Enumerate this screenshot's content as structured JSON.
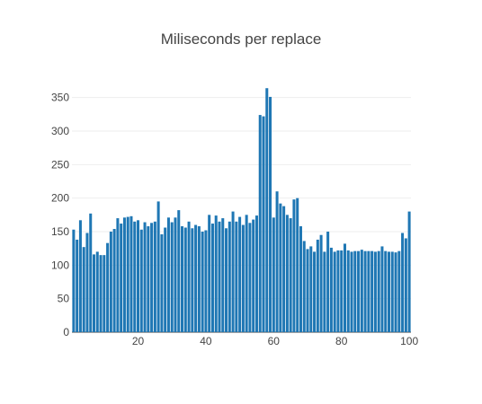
{
  "chart_data": {
    "type": "bar",
    "title": "Miliseconds per replace",
    "xlabel": "",
    "ylabel": "",
    "xlim": [
      0.5,
      100.5
    ],
    "ylim": [
      0,
      375
    ],
    "x_ticks": [
      20,
      40,
      60,
      80,
      100
    ],
    "y_ticks": [
      0,
      50,
      100,
      150,
      200,
      250,
      300,
      350
    ],
    "grid": "horizontal",
    "bar_color": "#1f77b4",
    "x": [
      1,
      2,
      3,
      4,
      5,
      6,
      7,
      8,
      9,
      10,
      11,
      12,
      13,
      14,
      15,
      16,
      17,
      18,
      19,
      20,
      21,
      22,
      23,
      24,
      25,
      26,
      27,
      28,
      29,
      30,
      31,
      32,
      33,
      34,
      35,
      36,
      37,
      38,
      39,
      40,
      41,
      42,
      43,
      44,
      45,
      46,
      47,
      48,
      49,
      50,
      51,
      52,
      53,
      54,
      55,
      56,
      57,
      58,
      59,
      60,
      61,
      62,
      63,
      64,
      65,
      66,
      67,
      68,
      69,
      70,
      71,
      72,
      73,
      74,
      75,
      76,
      77,
      78,
      79,
      80,
      81,
      82,
      83,
      84,
      85,
      86,
      87,
      88,
      89,
      90,
      91,
      92,
      93,
      94,
      95,
      96,
      97,
      98,
      99,
      100
    ],
    "values": [
      153,
      138,
      167,
      127,
      148,
      177,
      116,
      120,
      115,
      115,
      133,
      150,
      154,
      170,
      162,
      171,
      172,
      173,
      165,
      167,
      153,
      164,
      158,
      163,
      165,
      195,
      146,
      156,
      171,
      164,
      171,
      182,
      158,
      156,
      165,
      155,
      160,
      158,
      150,
      152,
      175,
      162,
      174,
      165,
      170,
      155,
      165,
      180,
      165,
      172,
      160,
      175,
      163,
      168,
      174,
      324,
      322,
      364,
      351,
      171,
      210,
      192,
      188,
      175,
      170,
      198,
      200,
      158,
      136,
      124,
      128,
      120,
      138,
      145,
      120,
      150,
      126,
      120,
      122,
      122,
      132,
      122,
      120,
      121,
      121,
      123,
      121,
      121,
      121,
      120,
      121,
      128,
      121,
      120,
      120,
      119,
      121,
      148,
      140,
      180
    ]
  }
}
